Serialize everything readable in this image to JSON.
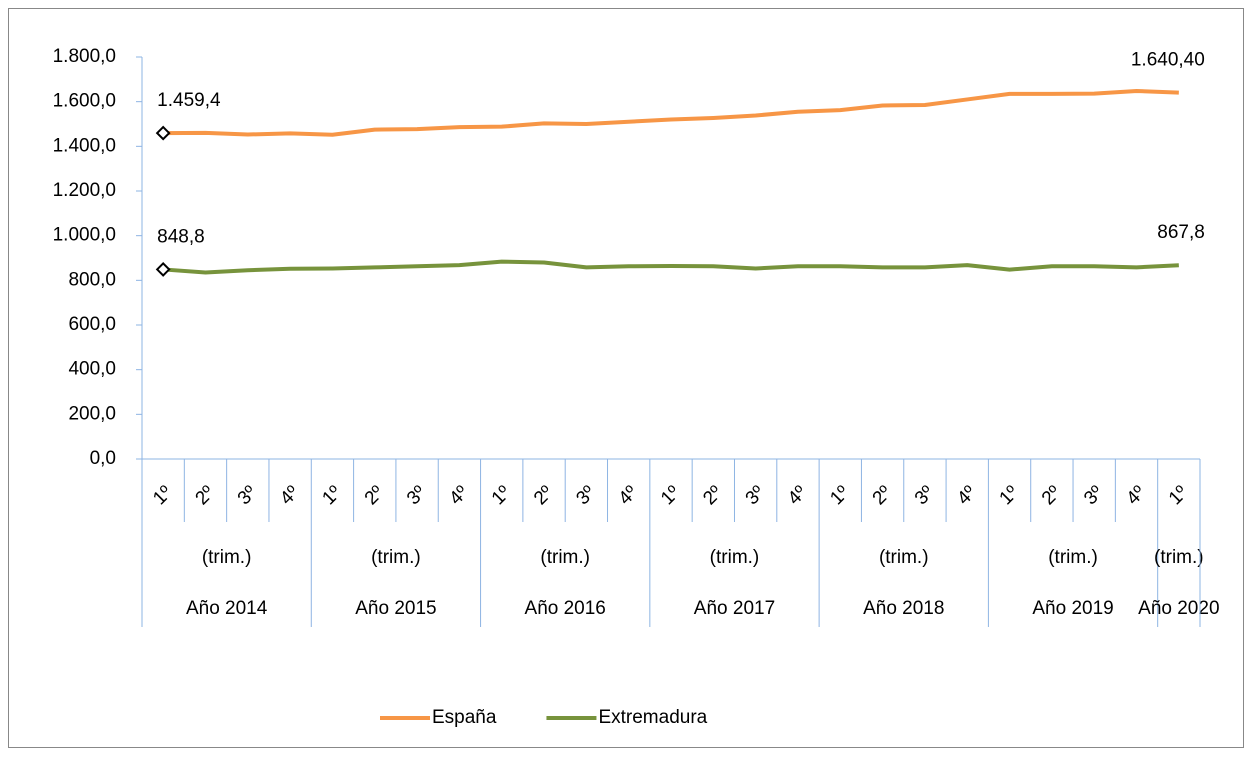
{
  "chart_data": {
    "type": "line",
    "groups": [
      {
        "name": "Año 2014",
        "label": "(trim.)",
        "categories": [
          "1º",
          "2º",
          "3º",
          "4º"
        ]
      },
      {
        "name": "Año 2015",
        "label": "(trim.)",
        "categories": [
          "1º",
          "2º",
          "3º",
          "4º"
        ]
      },
      {
        "name": "Año 2016",
        "label": "(trim.)",
        "categories": [
          "1º",
          "2º",
          "3º",
          "4º"
        ]
      },
      {
        "name": "Año 2017",
        "label": "(trim.)",
        "categories": [
          "1º",
          "2º",
          "3º",
          "4º"
        ]
      },
      {
        "name": "Año 2018",
        "label": "(trim.)",
        "categories": [
          "1º",
          "2º",
          "3º",
          "4º"
        ]
      },
      {
        "name": "Año 2019",
        "label": "(trim.)",
        "categories": [
          "1º",
          "2º",
          "3º",
          "4º"
        ]
      },
      {
        "name": "Año 2020",
        "label": "(trim.)",
        "categories": [
          "1º"
        ]
      }
    ],
    "series": [
      {
        "name": "España",
        "color": "#f79646",
        "values": [
          1459.4,
          1460,
          1453,
          1458,
          1452,
          1475,
          1477,
          1486,
          1488,
          1503,
          1500,
          1510,
          1520,
          1527,
          1538,
          1555,
          1562,
          1583,
          1585,
          1610,
          1635,
          1635,
          1636,
          1648,
          1640.4
        ],
        "value_labels": [
          "1.459,4",
          null,
          null,
          null,
          null,
          null,
          null,
          null,
          null,
          null,
          null,
          null,
          null,
          null,
          null,
          null,
          null,
          null,
          null,
          null,
          null,
          null,
          null,
          null,
          "1.640,40"
        ]
      },
      {
        "name": "Extremadura",
        "color": "#77933c",
        "values": [
          848.8,
          835,
          845,
          852,
          853,
          858,
          863,
          868,
          884,
          880,
          858,
          863,
          864,
          863,
          853,
          863,
          863,
          858,
          858,
          868,
          848,
          863,
          863,
          858,
          867.8
        ],
        "value_labels": [
          "848,8",
          null,
          null,
          null,
          null,
          null,
          null,
          null,
          null,
          null,
          null,
          null,
          null,
          null,
          null,
          null,
          null,
          null,
          null,
          null,
          null,
          null,
          null,
          null,
          "867,8"
        ]
      }
    ],
    "ylim": [
      0,
      1800
    ],
    "yticks": [
      {
        "value": 0,
        "label": "0,0"
      },
      {
        "value": 200,
        "label": "200,0"
      },
      {
        "value": 400,
        "label": "400,0"
      },
      {
        "value": 600,
        "label": "600,0"
      },
      {
        "value": 800,
        "label": "800,0"
      },
      {
        "value": 1000,
        "label": "1.000,0"
      },
      {
        "value": 1200,
        "label": "1.200,0"
      },
      {
        "value": 1400,
        "label": "1.400,0"
      },
      {
        "value": 1600,
        "label": "1.600,0"
      },
      {
        "value": 1800,
        "label": "1.800,0"
      }
    ],
    "legend": "bottom"
  }
}
